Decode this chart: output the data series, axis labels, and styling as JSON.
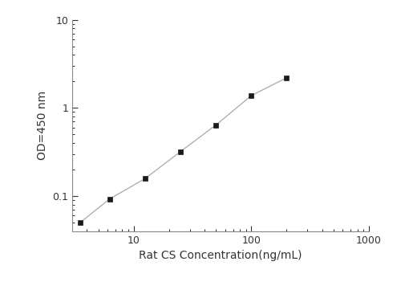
{
  "x": [
    3.5,
    6.25,
    12.5,
    25,
    50,
    100,
    200
  ],
  "y": [
    0.05,
    0.093,
    0.158,
    0.32,
    0.64,
    1.38,
    2.2
  ],
  "xlabel": "Rat CS Concentration(ng/mL)",
  "ylabel": "OD=450 nm",
  "xlim": [
    3,
    1000
  ],
  "ylim": [
    0.04,
    10
  ],
  "xticks": [
    10,
    100,
    1000
  ],
  "yticks": [
    0.1,
    1,
    10
  ],
  "line_color": "#b0b0b0",
  "marker_color": "#1a1a1a",
  "marker": "s",
  "marker_size": 5,
  "line_width": 1.0,
  "background_color": "#ffffff",
  "spine_color": "#888888",
  "tick_color": "#333333",
  "label_fontsize": 10,
  "tick_fontsize": 9
}
